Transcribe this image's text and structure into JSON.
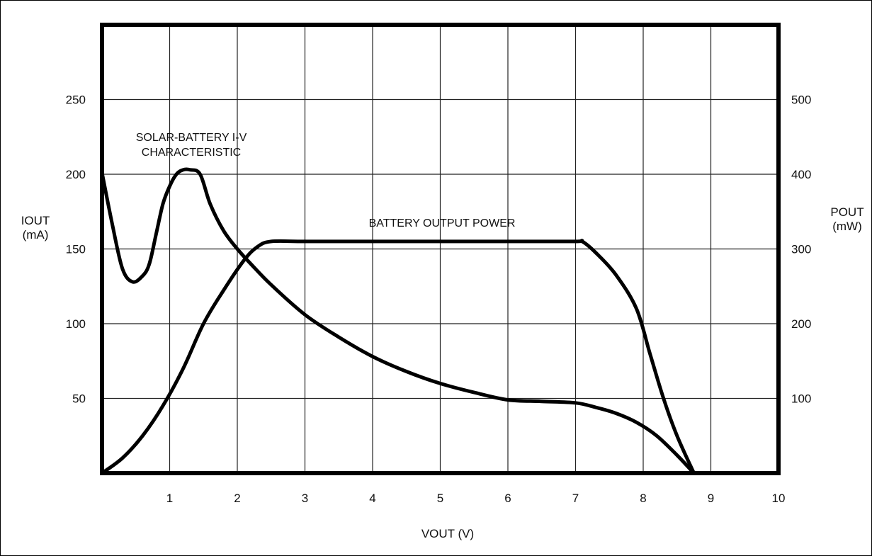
{
  "chart_data": {
    "type": "line",
    "xlabel": "VOUT (V)",
    "ylabel_left": [
      "IOUT",
      "(mA)"
    ],
    "ylabel_right": [
      "POUT",
      "(mW)"
    ],
    "xlim": [
      0,
      10
    ],
    "ylim_left": [
      0,
      300
    ],
    "ylim_right": [
      0,
      600
    ],
    "x_ticks": [
      "1",
      "2",
      "3",
      "4",
      "5",
      "6",
      "7",
      "8",
      "9",
      "10"
    ],
    "y_ticks_left": [
      "50",
      "100",
      "150",
      "200",
      "250"
    ],
    "y_ticks_right": [
      "100",
      "200",
      "300",
      "400",
      "500"
    ],
    "grid": true,
    "annotations": [
      {
        "id": "iv",
        "lines": [
          "SOLAR-BATTERY I-V",
          "CHARACTERISTIC"
        ]
      },
      {
        "id": "power",
        "lines": [
          "BATTERY OUTPUT POWER"
        ]
      }
    ],
    "series": [
      {
        "axis": "left",
        "x": [
          0,
          0.15,
          0.3,
          0.45,
          0.6,
          0.7,
          0.8,
          0.9,
          1.0,
          1.1,
          1.2,
          1.3,
          1.45,
          1.6,
          1.8,
          2.0,
          2.2,
          2.5,
          3.0,
          3.5,
          4.0,
          4.5,
          5.0,
          5.5,
          6.0,
          6.5,
          7.0,
          7.3,
          7.6,
          7.9,
          8.2,
          8.5,
          8.75
        ],
        "y": [
          201,
          167,
          137,
          128,
          132,
          140,
          160,
          180,
          192,
          200,
          203,
          203,
          200,
          180,
          162,
          150,
          140,
          126,
          106,
          91,
          78,
          68,
          60,
          54,
          49,
          48,
          47,
          44,
          40,
          34,
          25,
          12,
          0
        ]
      },
      {
        "axis": "right",
        "x": [
          0,
          0.3,
          0.6,
          0.9,
          1.2,
          1.5,
          1.8,
          2.1,
          2.3,
          2.5,
          3.0,
          4.0,
          5.0,
          6.0,
          7.0,
          7.1,
          7.3,
          7.6,
          7.9,
          8.1,
          8.3,
          8.5,
          8.75
        ],
        "y": [
          0,
          20,
          50,
          90,
          140,
          200,
          245,
          285,
          303,
          310,
          310,
          310,
          310,
          310,
          310,
          310,
          295,
          265,
          220,
          160,
          100,
          50,
          0
        ]
      }
    ]
  }
}
